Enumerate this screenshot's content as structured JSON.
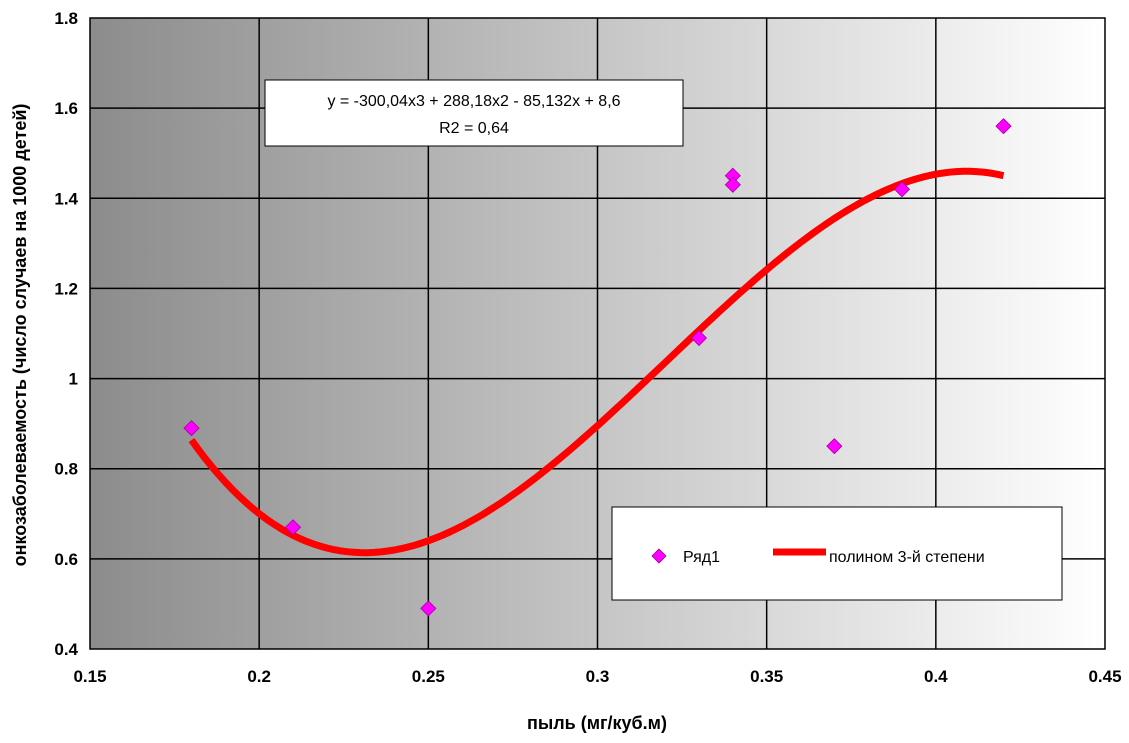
{
  "chart_data": {
    "type": "scatter",
    "xlabel": "пыль (мг/куб.м)",
    "ylabel": "онкозаболеваемость (число случаев на 1000 детей)",
    "xlim": [
      0.15,
      0.45
    ],
    "ylim": [
      0.4,
      1.8
    ],
    "xticks": [
      "0.15",
      "0.2",
      "0.25",
      "0.3",
      "0.35",
      "0.4",
      "0.45"
    ],
    "yticks": [
      "0.4",
      "0.6",
      "0.8",
      "1",
      "1.2",
      "1.4",
      "1.6",
      "1.8"
    ],
    "grid": true,
    "legend_position": "bottom-right",
    "series": [
      {
        "name": "Ряд1",
        "kind": "scatter",
        "marker": "diamond",
        "color": "#ff00ff",
        "points": [
          {
            "x": 0.18,
            "y": 0.89
          },
          {
            "x": 0.21,
            "y": 0.67
          },
          {
            "x": 0.25,
            "y": 0.49
          },
          {
            "x": 0.33,
            "y": 1.09
          },
          {
            "x": 0.34,
            "y": 1.45
          },
          {
            "x": 0.34,
            "y": 1.43
          },
          {
            "x": 0.37,
            "y": 0.85
          },
          {
            "x": 0.39,
            "y": 1.42
          },
          {
            "x": 0.42,
            "y": 1.56
          }
        ]
      },
      {
        "name": "полином 3-й степени",
        "kind": "trendline",
        "color": "#ff0000",
        "coefficients": [
          -300.04,
          288.18,
          -85.132,
          8.6
        ],
        "x_range": [
          0.18,
          0.42
        ]
      }
    ],
    "annotation": {
      "equation": "y = -300,04x3 + 288,18x2 - 85,132x + 8,6",
      "r2": "R2 = 0,64"
    }
  }
}
